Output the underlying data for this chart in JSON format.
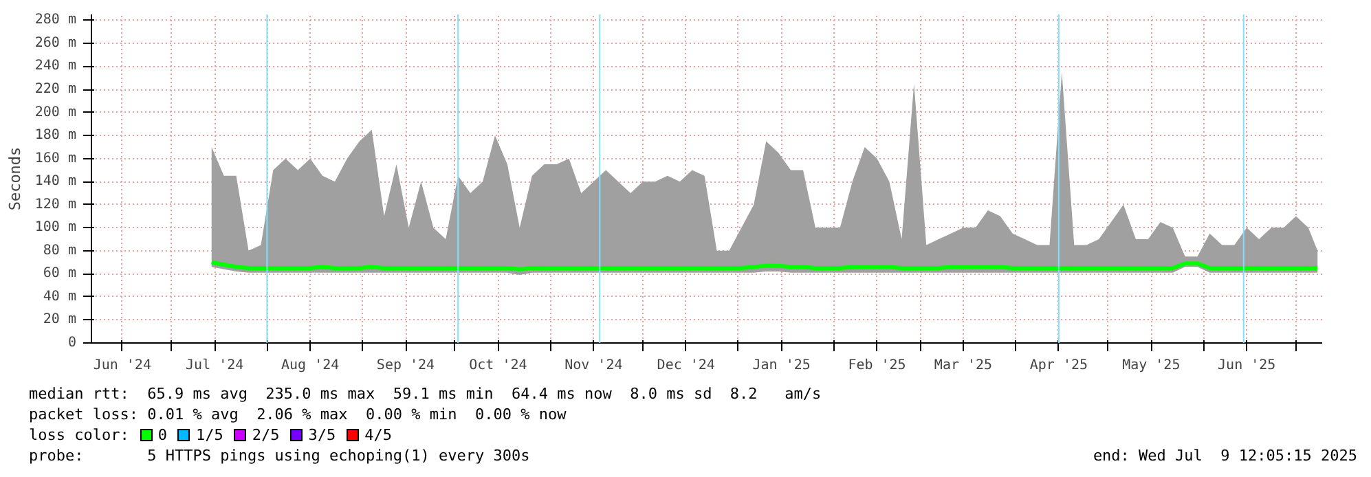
{
  "chart_data": {
    "type": "line",
    "ylabel": "Seconds",
    "x": [
      "2024-07-14",
      "2024-07-18",
      "2024-07-22",
      "2024-07-26",
      "2024-07-30",
      "2024-08-03",
      "2024-08-07",
      "2024-08-11",
      "2024-08-15",
      "2024-08-19",
      "2024-08-23",
      "2024-08-27",
      "2024-08-31",
      "2024-09-04",
      "2024-09-08",
      "2024-09-12",
      "2024-09-16",
      "2024-09-20",
      "2024-09-24",
      "2024-09-28",
      "2024-10-02",
      "2024-10-06",
      "2024-10-10",
      "2024-10-14",
      "2024-10-18",
      "2024-10-22",
      "2024-10-26",
      "2024-10-30",
      "2024-11-03",
      "2024-11-07",
      "2024-11-11",
      "2024-11-15",
      "2024-11-19",
      "2024-11-23",
      "2024-11-27",
      "2024-12-01",
      "2024-12-05",
      "2024-12-09",
      "2024-12-13",
      "2024-12-17",
      "2024-12-21",
      "2024-12-25",
      "2024-12-29",
      "2025-01-02",
      "2025-01-06",
      "2025-01-10",
      "2025-01-14",
      "2025-01-18",
      "2025-01-22",
      "2025-01-26",
      "2025-01-30",
      "2025-02-03",
      "2025-02-07",
      "2025-02-11",
      "2025-02-15",
      "2025-02-19",
      "2025-02-23",
      "2025-02-27",
      "2025-03-03",
      "2025-03-07",
      "2025-03-11",
      "2025-03-15",
      "2025-03-19",
      "2025-03-23",
      "2025-03-27",
      "2025-03-31",
      "2025-04-04",
      "2025-04-08",
      "2025-04-12",
      "2025-04-16",
      "2025-04-20",
      "2025-04-24",
      "2025-04-28",
      "2025-05-02",
      "2025-05-06",
      "2025-05-10",
      "2025-05-14",
      "2025-05-18",
      "2025-05-22",
      "2025-05-26",
      "2025-05-30",
      "2025-06-03",
      "2025-06-07",
      "2025-06-11",
      "2025-06-15",
      "2025-06-19",
      "2025-06-23",
      "2025-06-27",
      "2025-07-01",
      "2025-07-05",
      "2025-07-08"
    ],
    "series": [
      {
        "name": "0",
        "color": "#00ff00",
        "values": [
          70,
          68,
          66,
          65,
          65,
          65,
          65,
          65,
          65,
          66,
          65,
          65,
          65,
          66,
          65,
          65,
          65,
          65,
          65,
          65,
          65,
          65,
          65,
          65,
          65,
          64,
          65,
          65,
          65,
          65,
          65,
          65,
          65,
          65,
          65,
          65,
          65,
          65,
          65,
          65,
          65,
          65,
          65,
          65,
          66,
          67,
          67,
          66,
          66,
          65,
          65,
          65,
          66,
          66,
          66,
          66,
          65,
          65,
          65,
          65,
          66,
          66,
          66,
          66,
          66,
          65,
          65,
          65,
          65,
          65,
          65,
          65,
          65,
          65,
          65,
          65,
          65,
          65,
          65,
          69,
          69,
          65,
          65,
          65,
          65,
          65,
          65,
          65,
          65,
          65,
          65
        ],
        "lower": [
          66,
          64,
          62,
          61,
          61,
          61,
          61,
          61,
          61,
          61,
          61,
          61,
          61,
          61,
          61,
          61,
          61,
          61,
          61,
          61,
          61,
          61,
          61,
          61,
          61,
          59,
          61,
          61,
          61,
          61,
          61,
          61,
          61,
          61,
          61,
          61,
          61,
          61,
          61,
          61,
          61,
          61,
          61,
          61,
          61,
          62,
          62,
          61,
          61,
          61,
          61,
          61,
          61,
          61,
          61,
          61,
          61,
          61,
          61,
          61,
          61,
          61,
          61,
          61,
          61,
          61,
          61,
          61,
          61,
          61,
          61,
          61,
          61,
          61,
          61,
          61,
          61,
          61,
          61,
          66,
          66,
          61,
          61,
          61,
          61,
          61,
          61,
          61,
          61,
          61,
          61
        ],
        "upper": [
          170,
          145,
          145,
          80,
          85,
          150,
          160,
          150,
          160,
          145,
          140,
          160,
          175,
          185,
          110,
          155,
          100,
          140,
          100,
          90,
          145,
          130,
          140,
          180,
          155,
          100,
          145,
          155,
          155,
          160,
          130,
          140,
          150,
          140,
          130,
          140,
          140,
          145,
          140,
          150,
          145,
          80,
          80,
          100,
          120,
          175,
          165,
          150,
          150,
          100,
          100,
          100,
          140,
          170,
          160,
          140,
          90,
          225,
          85,
          90,
          95,
          100,
          100,
          115,
          110,
          95,
          90,
          85,
          85,
          235,
          85,
          85,
          90,
          105,
          120,
          90,
          90,
          105,
          100,
          75,
          75,
          95,
          85,
          85,
          100,
          90,
          100,
          100,
          110,
          100,
          80
        ]
      },
      {
        "name": "1/5",
        "color": "#00b8ff",
        "values": [
          null,
          null,
          null,
          null,
          null,
          null,
          null,
          null,
          null,
          null,
          null,
          null,
          null,
          null,
          null,
          null,
          null,
          null,
          null,
          null,
          null,
          null,
          null,
          null,
          null,
          null,
          null,
          null,
          null,
          null,
          null,
          null,
          null,
          null,
          null,
          null,
          null,
          null,
          null,
          null,
          null,
          null,
          null,
          null,
          null,
          null,
          null,
          null,
          null,
          null,
          null,
          null,
          null,
          null,
          null,
          null,
          null,
          null,
          null,
          null,
          null,
          null,
          null,
          null,
          null,
          null,
          null,
          null,
          null,
          null,
          null,
          null,
          null,
          null,
          null,
          null,
          null,
          null,
          null,
          null,
          null,
          null,
          null,
          null,
          null,
          null,
          null,
          null,
          null,
          null,
          null
        ]
      },
      {
        "name": "2/5",
        "color": "#cc00ff",
        "values": [
          null,
          null,
          null,
          null,
          null,
          null,
          null,
          null,
          null,
          null,
          null,
          null,
          null,
          null,
          null,
          null,
          null,
          null,
          null,
          null,
          null,
          null,
          null,
          null,
          null,
          null,
          null,
          null,
          null,
          null,
          null,
          null,
          null,
          null,
          null,
          null,
          null,
          null,
          null,
          null,
          null,
          null,
          null,
          null,
          null,
          null,
          null,
          null,
          null,
          null,
          null,
          null,
          null,
          null,
          null,
          null,
          null,
          null,
          null,
          null,
          null,
          null,
          null,
          null,
          null,
          null,
          null,
          null,
          null,
          null,
          null,
          null,
          null,
          null,
          null,
          null,
          null,
          null,
          null,
          null,
          null,
          null,
          null,
          null,
          null,
          null,
          null,
          null,
          null,
          null,
          null
        ]
      },
      {
        "name": "3/5",
        "color": "#7700ff",
        "values": [
          null,
          null,
          null,
          null,
          null,
          null,
          null,
          null,
          null,
          null,
          null,
          null,
          null,
          null,
          null,
          null,
          null,
          null,
          null,
          null,
          null,
          null,
          null,
          null,
          null,
          null,
          null,
          null,
          null,
          null,
          null,
          null,
          null,
          null,
          null,
          null,
          null,
          null,
          null,
          null,
          null,
          null,
          null,
          null,
          null,
          null,
          null,
          null,
          null,
          null,
          null,
          null,
          null,
          null,
          null,
          null,
          null,
          null,
          null,
          null,
          null,
          null,
          null,
          null,
          null,
          null,
          null,
          null,
          null,
          null,
          null,
          null,
          null,
          null,
          null,
          null,
          null,
          null,
          null,
          null,
          null,
          null,
          null,
          null,
          null,
          null,
          null,
          null,
          null,
          null,
          null
        ]
      },
      {
        "name": "4/5",
        "color": "#ff0000",
        "values": [
          null,
          null,
          null,
          null,
          null,
          null,
          null,
          null,
          null,
          null,
          null,
          null,
          null,
          null,
          null,
          null,
          null,
          null,
          null,
          null,
          null,
          null,
          null,
          null,
          null,
          null,
          null,
          null,
          null,
          null,
          null,
          null,
          null,
          null,
          null,
          null,
          null,
          null,
          null,
          null,
          null,
          null,
          null,
          null,
          null,
          null,
          null,
          null,
          null,
          null,
          null,
          null,
          null,
          null,
          null,
          null,
          null,
          null,
          null,
          null,
          null,
          null,
          null,
          null,
          null,
          null,
          null,
          null,
          null,
          null,
          null,
          null,
          null,
          null,
          null,
          null,
          null,
          null,
          null,
          null,
          null,
          null,
          null,
          null,
          null,
          null,
          null,
          null,
          null,
          null,
          null
        ]
      }
    ],
    "legend": "bottom",
    "legend_title": "loss color:",
    "xlim": [
      "2024-06-05",
      "2025-07-09T12:05"
    ],
    "xticks": [
      {
        "value": "2024-06-15",
        "label": "Jun '24"
      },
      {
        "value": "2024-07-01",
        "label": null
      },
      {
        "value": "2024-07-15",
        "label": "Jul '24"
      },
      {
        "value": "2024-08-01",
        "label": null
      },
      {
        "value": "2024-08-15",
        "label": "Aug '24"
      },
      {
        "value": "2024-09-01",
        "label": null
      },
      {
        "value": "2024-09-15",
        "label": "Sep '24"
      },
      {
        "value": "2024-10-01",
        "label": null
      },
      {
        "value": "2024-10-15",
        "label": "Oct '24"
      },
      {
        "value": "2024-11-01",
        "label": null
      },
      {
        "value": "2024-11-15",
        "label": "Nov '24"
      },
      {
        "value": "2024-12-01",
        "label": null
      },
      {
        "value": "2024-12-15",
        "label": "Dec '24"
      },
      {
        "value": "2025-01-01",
        "label": null
      },
      {
        "value": "2025-01-15",
        "label": "Jan '25"
      },
      {
        "value": "2025-02-01",
        "label": null
      },
      {
        "value": "2025-02-15",
        "label": "Feb '25"
      },
      {
        "value": "2025-03-01",
        "label": null
      },
      {
        "value": "2025-03-15",
        "label": "Mar '25"
      },
      {
        "value": "2025-04-01",
        "label": null
      },
      {
        "value": "2025-04-15",
        "label": "Apr '25"
      },
      {
        "value": "2025-05-01",
        "label": null
      },
      {
        "value": "2025-05-15",
        "label": "May '25"
      },
      {
        "value": "2025-06-01",
        "label": null
      },
      {
        "value": "2025-06-15",
        "label": "Jun '25"
      },
      {
        "value": "2025-07-01",
        "label": null
      }
    ],
    "ylim": [
      0,
      285
    ],
    "yticks": [
      0,
      {
        "value": 20,
        "label": "20 m"
      },
      {
        "value": 40,
        "label": "40 m"
      },
      {
        "value": 60,
        "label": "60 m"
      },
      {
        "value": 80,
        "label": "80 m"
      },
      {
        "value": 100,
        "label": "100 m"
      },
      {
        "value": 120,
        "label": "120 m"
      },
      {
        "value": 140,
        "label": "140 m"
      },
      {
        "value": 160,
        "label": "160 m"
      },
      {
        "value": 180,
        "label": "180 m"
      },
      {
        "value": 200,
        "label": "200 m"
      },
      {
        "value": 220,
        "label": "220 m"
      },
      {
        "value": 240,
        "label": "240 m"
      },
      {
        "value": 260,
        "label": "260 m"
      },
      {
        "value": 280,
        "label": "280 m"
      }
    ],
    "grid": true,
    "ref_lines": [
      {
        "axis": "x",
        "value": "2024-08-01",
        "color": "#80e0ff"
      },
      {
        "axis": "x",
        "value": "2024-10-02",
        "color": "#80e0ff"
      },
      {
        "axis": "x",
        "value": "2024-11-17",
        "color": "#80e0ff"
      },
      {
        "axis": "x",
        "value": "2025-04-15",
        "color": "#80e0ff"
      },
      {
        "axis": "x",
        "value": "2025-06-14",
        "color": "#80e0ff"
      }
    ],
    "annotations": [
      "median rtt:  65.9 ms avg  235.0 ms max  59.1 ms min  64.4 ms now  8.0 ms sd  8.2   am/s",
      "packet loss: 0.01 % avg  2.06 % max  0.00 % min  0.00 % now",
      "probe:       5 HTTPS pings using echoping(1) every 300s",
      "end: Wed Jul  9 12:05:15 2025"
    ]
  }
}
